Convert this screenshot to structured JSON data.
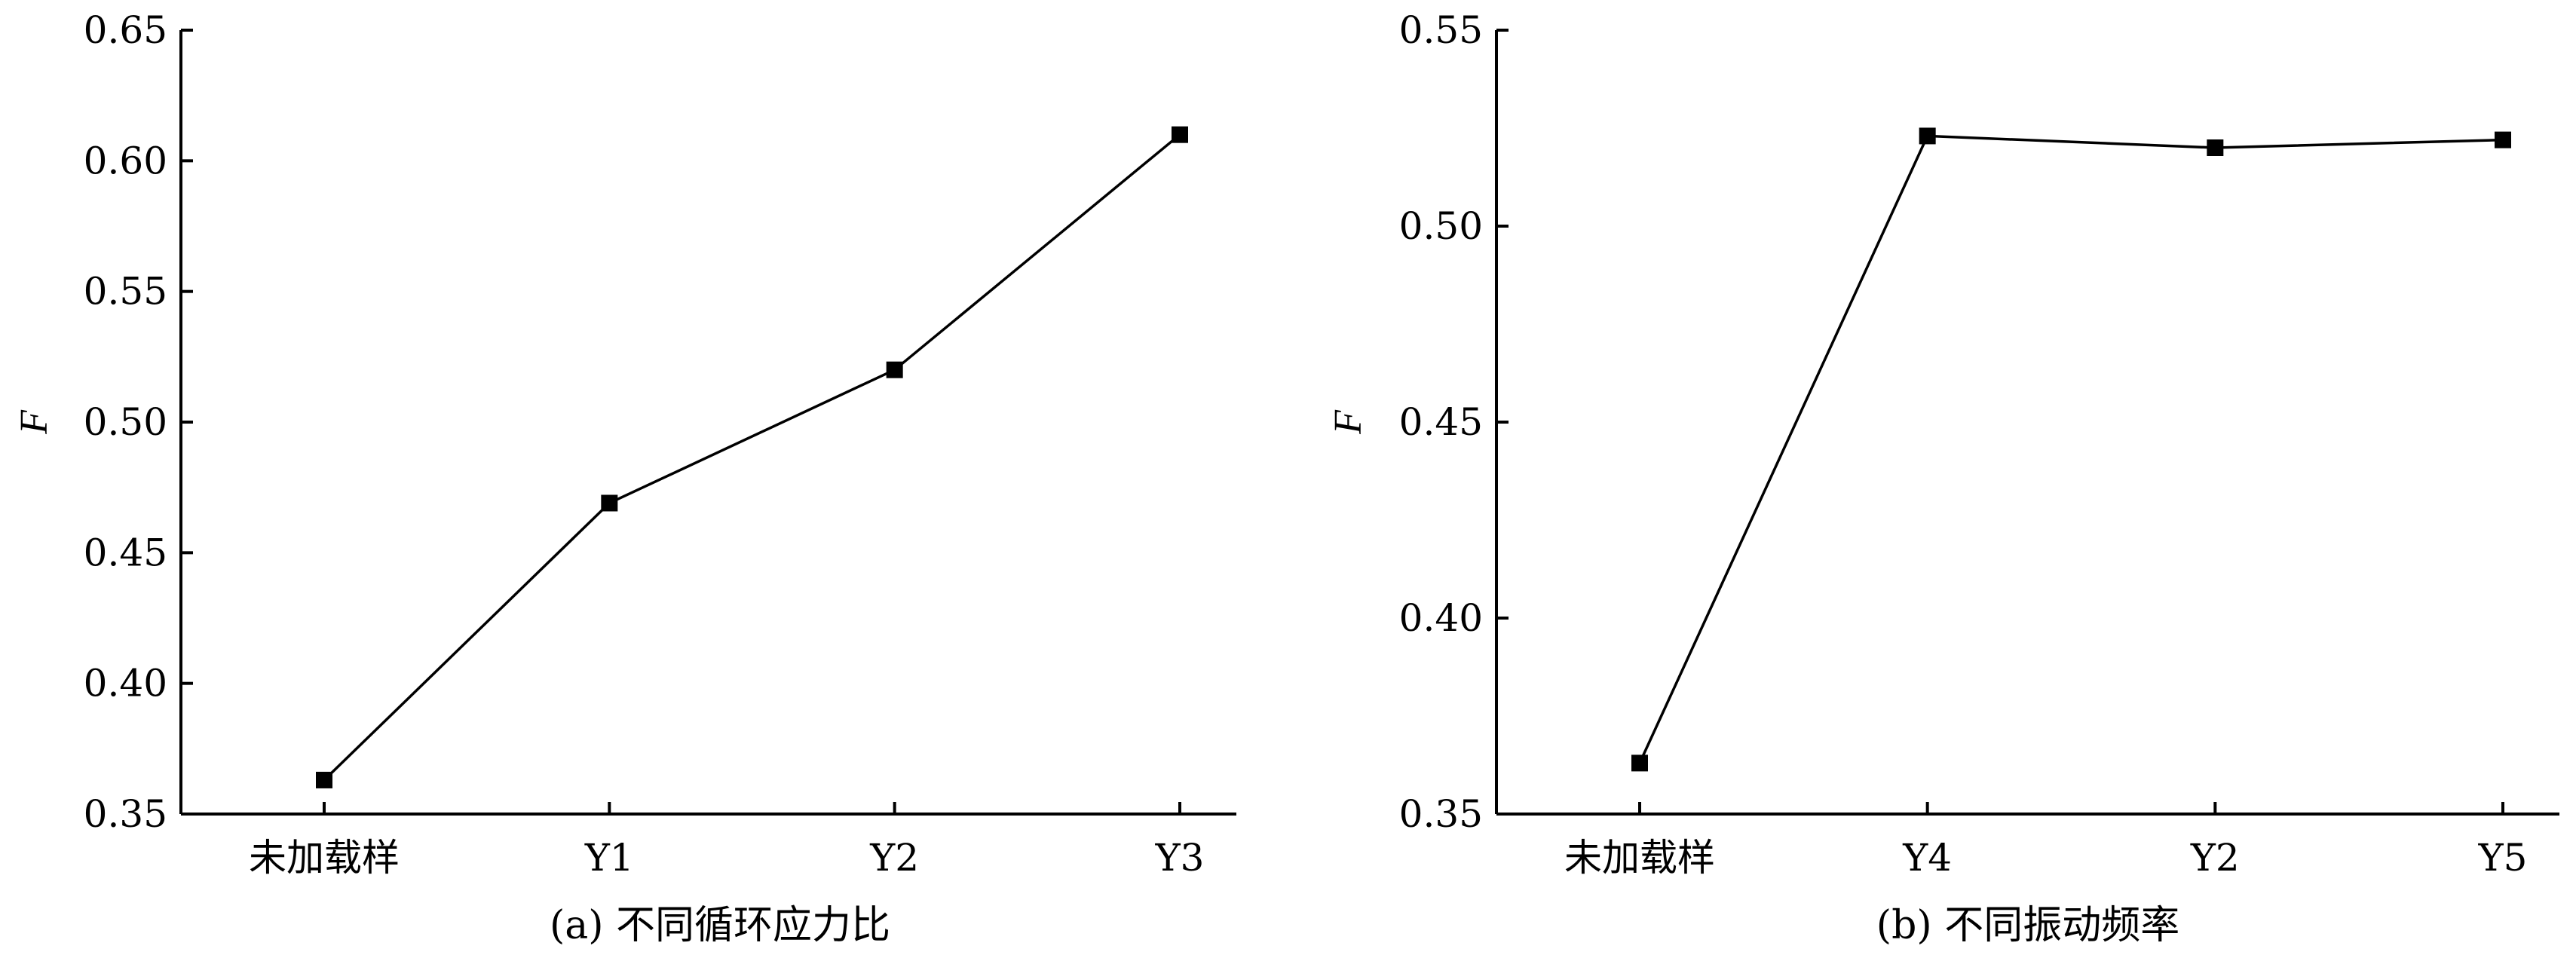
{
  "chart_data": [
    {
      "type": "line",
      "caption": "(a) 不同循环应力比",
      "ylabel": "F",
      "xlabel": "",
      "categories": [
        "未加载样",
        "Y1",
        "Y2",
        "Y3"
      ],
      "series": [
        {
          "values": [
            0.363,
            0.469,
            0.52,
            0.61
          ]
        }
      ],
      "ylim": [
        0.35,
        0.65
      ],
      "yticks": [
        "0.35",
        "0.40",
        "0.45",
        "0.50",
        "0.55",
        "0.60",
        "0.65"
      ],
      "marker": "square",
      "grid": false,
      "legend": "none"
    },
    {
      "type": "line",
      "caption": "(b) 不同振动频率",
      "ylabel": "F",
      "xlabel": "",
      "categories": [
        "未加载样",
        "Y4",
        "Y2",
        "Y5"
      ],
      "series": [
        {
          "values": [
            0.363,
            0.523,
            0.52,
            0.522
          ]
        }
      ],
      "ylim": [
        0.35,
        0.55
      ],
      "yticks": [
        "0.35",
        "0.40",
        "0.45",
        "0.50",
        "0.55"
      ],
      "marker": "square",
      "grid": false,
      "legend": "none"
    }
  ]
}
